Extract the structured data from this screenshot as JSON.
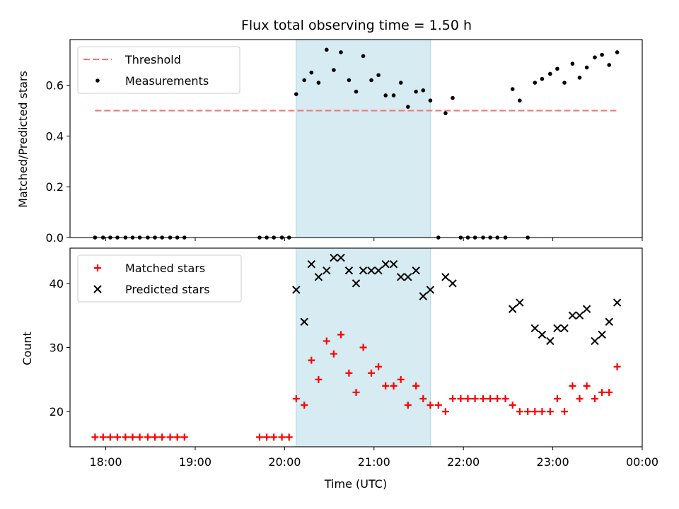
{
  "title": "Flux total observing time = 1.50 h",
  "colors": {
    "threshold": "#ff7070",
    "measurements": "#000000",
    "matched": "#ff0000",
    "predicted": "#000000",
    "window": "#add8e6"
  },
  "chart_data": [
    {
      "type": "scatter",
      "panel": "top",
      "ylabel": "Matched/Predicted stars",
      "xlim": [
        17.6,
        24.0
      ],
      "ylim": [
        0.0,
        0.78
      ],
      "yticks": [
        0.0,
        0.2,
        0.4,
        0.6
      ],
      "ytick_labels": [
        "0.0",
        "0.2",
        "0.4",
        "0.6"
      ],
      "highlight_span": [
        20.13,
        21.63
      ],
      "legend": {
        "position": "top-left",
        "entries": [
          "Threshold",
          "Measurements"
        ]
      },
      "threshold": {
        "name": "Threshold",
        "y": 0.5,
        "x": [
          17.88,
          23.72
        ]
      },
      "series": [
        {
          "name": "Measurements",
          "marker": "dot",
          "points": [
            [
              17.88,
              0.0
            ],
            [
              17.97,
              0.0
            ],
            [
              18.05,
              0.0
            ],
            [
              18.13,
              0.0
            ],
            [
              18.22,
              0.0
            ],
            [
              18.3,
              0.0
            ],
            [
              18.38,
              0.0
            ],
            [
              18.47,
              0.0
            ],
            [
              18.55,
              0.0
            ],
            [
              18.63,
              0.0
            ],
            [
              18.72,
              0.0
            ],
            [
              18.8,
              0.0
            ],
            [
              18.88,
              0.0
            ],
            [
              19.72,
              0.0
            ],
            [
              19.8,
              0.0
            ],
            [
              19.88,
              0.0
            ],
            [
              19.97,
              0.0
            ],
            [
              20.05,
              0.0
            ],
            [
              20.13,
              0.565
            ],
            [
              20.22,
              0.62
            ],
            [
              20.3,
              0.65
            ],
            [
              20.38,
              0.61
            ],
            [
              20.47,
              0.74
            ],
            [
              20.55,
              0.66
            ],
            [
              20.63,
              0.73
            ],
            [
              20.72,
              0.62
            ],
            [
              20.8,
              0.575
            ],
            [
              20.88,
              0.715
            ],
            [
              20.97,
              0.62
            ],
            [
              21.05,
              0.64
            ],
            [
              21.13,
              0.56
            ],
            [
              21.22,
              0.56
            ],
            [
              21.3,
              0.61
            ],
            [
              21.38,
              0.515
            ],
            [
              21.47,
              0.575
            ],
            [
              21.55,
              0.58
            ],
            [
              21.63,
              0.54
            ],
            [
              21.72,
              0.0
            ],
            [
              21.8,
              0.49
            ],
            [
              21.88,
              0.55
            ],
            [
              21.97,
              0.0
            ],
            [
              22.05,
              0.0
            ],
            [
              22.13,
              0.0
            ],
            [
              22.22,
              0.0
            ],
            [
              22.3,
              0.0
            ],
            [
              22.38,
              0.0
            ],
            [
              22.47,
              0.0
            ],
            [
              22.72,
              0.0
            ],
            [
              22.55,
              0.585
            ],
            [
              22.63,
              0.54
            ],
            [
              22.8,
              0.61
            ],
            [
              22.88,
              0.625
            ],
            [
              22.97,
              0.645
            ],
            [
              23.05,
              0.665
            ],
            [
              23.13,
              0.61
            ],
            [
              23.22,
              0.685
            ],
            [
              23.3,
              0.63
            ],
            [
              23.38,
              0.67
            ],
            [
              23.47,
              0.71
            ],
            [
              23.55,
              0.72
            ],
            [
              23.63,
              0.68
            ],
            [
              23.72,
              0.73
            ]
          ]
        }
      ]
    },
    {
      "type": "scatter",
      "panel": "bottom",
      "ylabel": "Count",
      "xlabel": "Time (UTC)",
      "xlim": [
        17.6,
        24.0
      ],
      "ylim": [
        14.5,
        45.5
      ],
      "yticks": [
        20,
        30,
        40
      ],
      "ytick_labels": [
        "20",
        "30",
        "40"
      ],
      "xticks": [
        18,
        19,
        20,
        21,
        22,
        23,
        24
      ],
      "xtick_labels": [
        "18:00",
        "19:00",
        "20:00",
        "21:00",
        "22:00",
        "23:00",
        "00:00"
      ],
      "highlight_span": [
        20.13,
        21.63
      ],
      "legend": {
        "position": "top-left",
        "entries": [
          "Matched stars",
          "Predicted stars"
        ]
      },
      "series": [
        {
          "name": "Matched stars",
          "marker": "plus",
          "points": [
            [
              17.88,
              16
            ],
            [
              17.97,
              16
            ],
            [
              18.05,
              16
            ],
            [
              18.13,
              16
            ],
            [
              18.22,
              16
            ],
            [
              18.3,
              16
            ],
            [
              18.38,
              16
            ],
            [
              18.47,
              16
            ],
            [
              18.55,
              16
            ],
            [
              18.63,
              16
            ],
            [
              18.72,
              16
            ],
            [
              18.8,
              16
            ],
            [
              18.88,
              16
            ],
            [
              19.72,
              16
            ],
            [
              19.8,
              16
            ],
            [
              19.88,
              16
            ],
            [
              19.97,
              16
            ],
            [
              20.05,
              16
            ],
            [
              20.13,
              22
            ],
            [
              20.22,
              21
            ],
            [
              20.3,
              28
            ],
            [
              20.38,
              25
            ],
            [
              20.47,
              31
            ],
            [
              20.55,
              29
            ],
            [
              20.63,
              32
            ],
            [
              20.72,
              26
            ],
            [
              20.8,
              23
            ],
            [
              20.88,
              30
            ],
            [
              20.97,
              26
            ],
            [
              21.05,
              27
            ],
            [
              21.13,
              24
            ],
            [
              21.22,
              24
            ],
            [
              21.3,
              25
            ],
            [
              21.38,
              21
            ],
            [
              21.47,
              24
            ],
            [
              21.55,
              22
            ],
            [
              21.63,
              21
            ],
            [
              21.72,
              21
            ],
            [
              21.8,
              20
            ],
            [
              21.88,
              22
            ],
            [
              21.97,
              22
            ],
            [
              22.05,
              22
            ],
            [
              22.13,
              22
            ],
            [
              22.22,
              22
            ],
            [
              22.3,
              22
            ],
            [
              22.38,
              22
            ],
            [
              22.47,
              22
            ],
            [
              22.55,
              21
            ],
            [
              22.63,
              20
            ],
            [
              22.72,
              20
            ],
            [
              22.8,
              20
            ],
            [
              22.88,
              20
            ],
            [
              22.97,
              20
            ],
            [
              23.05,
              22
            ],
            [
              23.13,
              20
            ],
            [
              23.22,
              24
            ],
            [
              23.3,
              22
            ],
            [
              23.38,
              24
            ],
            [
              23.47,
              22
            ],
            [
              23.55,
              23
            ],
            [
              23.63,
              23
            ],
            [
              23.72,
              27
            ]
          ]
        },
        {
          "name": "Predicted stars",
          "marker": "x",
          "points": [
            [
              20.13,
              39
            ],
            [
              20.22,
              34
            ],
            [
              20.3,
              43
            ],
            [
              20.38,
              41
            ],
            [
              20.47,
              42
            ],
            [
              20.55,
              44
            ],
            [
              20.63,
              44
            ],
            [
              20.72,
              42
            ],
            [
              20.8,
              40
            ],
            [
              20.88,
              42
            ],
            [
              20.97,
              42
            ],
            [
              21.05,
              42
            ],
            [
              21.13,
              43
            ],
            [
              21.22,
              43
            ],
            [
              21.3,
              41
            ],
            [
              21.38,
              41
            ],
            [
              21.47,
              42
            ],
            [
              21.55,
              38
            ],
            [
              21.63,
              39
            ],
            [
              21.8,
              41
            ],
            [
              21.88,
              40
            ],
            [
              22.55,
              36
            ],
            [
              22.63,
              37
            ],
            [
              22.8,
              33
            ],
            [
              22.88,
              32
            ],
            [
              22.97,
              31
            ],
            [
              23.05,
              33
            ],
            [
              23.13,
              33
            ],
            [
              23.22,
              35
            ],
            [
              23.3,
              35
            ],
            [
              23.38,
              36
            ],
            [
              23.47,
              31
            ],
            [
              23.55,
              32
            ],
            [
              23.63,
              34
            ],
            [
              23.72,
              37
            ]
          ]
        }
      ]
    }
  ]
}
